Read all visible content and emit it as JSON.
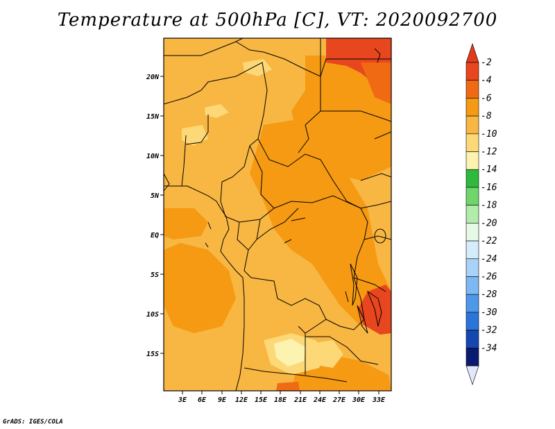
{
  "title": "Temperature at 500hPa [C], VT: 2020092700",
  "credit": "GrADS: IGES/COLA",
  "map": {
    "lat_ticks": [
      "20N",
      "15N",
      "10N",
      "5N",
      "EQ",
      "5S",
      "10S",
      "15S"
    ],
    "lon_ticks": [
      "3E",
      "6E",
      "9E",
      "12E",
      "15E",
      "18E",
      "21E",
      "24E",
      "27E",
      "30E",
      "33E"
    ]
  },
  "colorbar": {
    "labels": [
      "-2",
      "-4",
      "-6",
      "-8",
      "-10",
      "-12",
      "-14",
      "-16",
      "-18",
      "-20",
      "-22",
      "-24",
      "-26",
      "-28",
      "-30",
      "-32",
      "-34"
    ],
    "colors": [
      "#e8461e",
      "#f06a14",
      "#f59a12",
      "#f8b642",
      "#fcd877",
      "#fdf3b0",
      "#2fba3c",
      "#6fd66a",
      "#b2ecaa",
      "#e6f8e6",
      "#d4ecfc",
      "#a8d2f8",
      "#7cb8f2",
      "#4e98ea",
      "#2a74da",
      "#1448b0",
      "#0a1a6e"
    ],
    "top_arrow_color": "#e23a1a",
    "bottom_arrow_color": "#e4e6fc"
  }
}
